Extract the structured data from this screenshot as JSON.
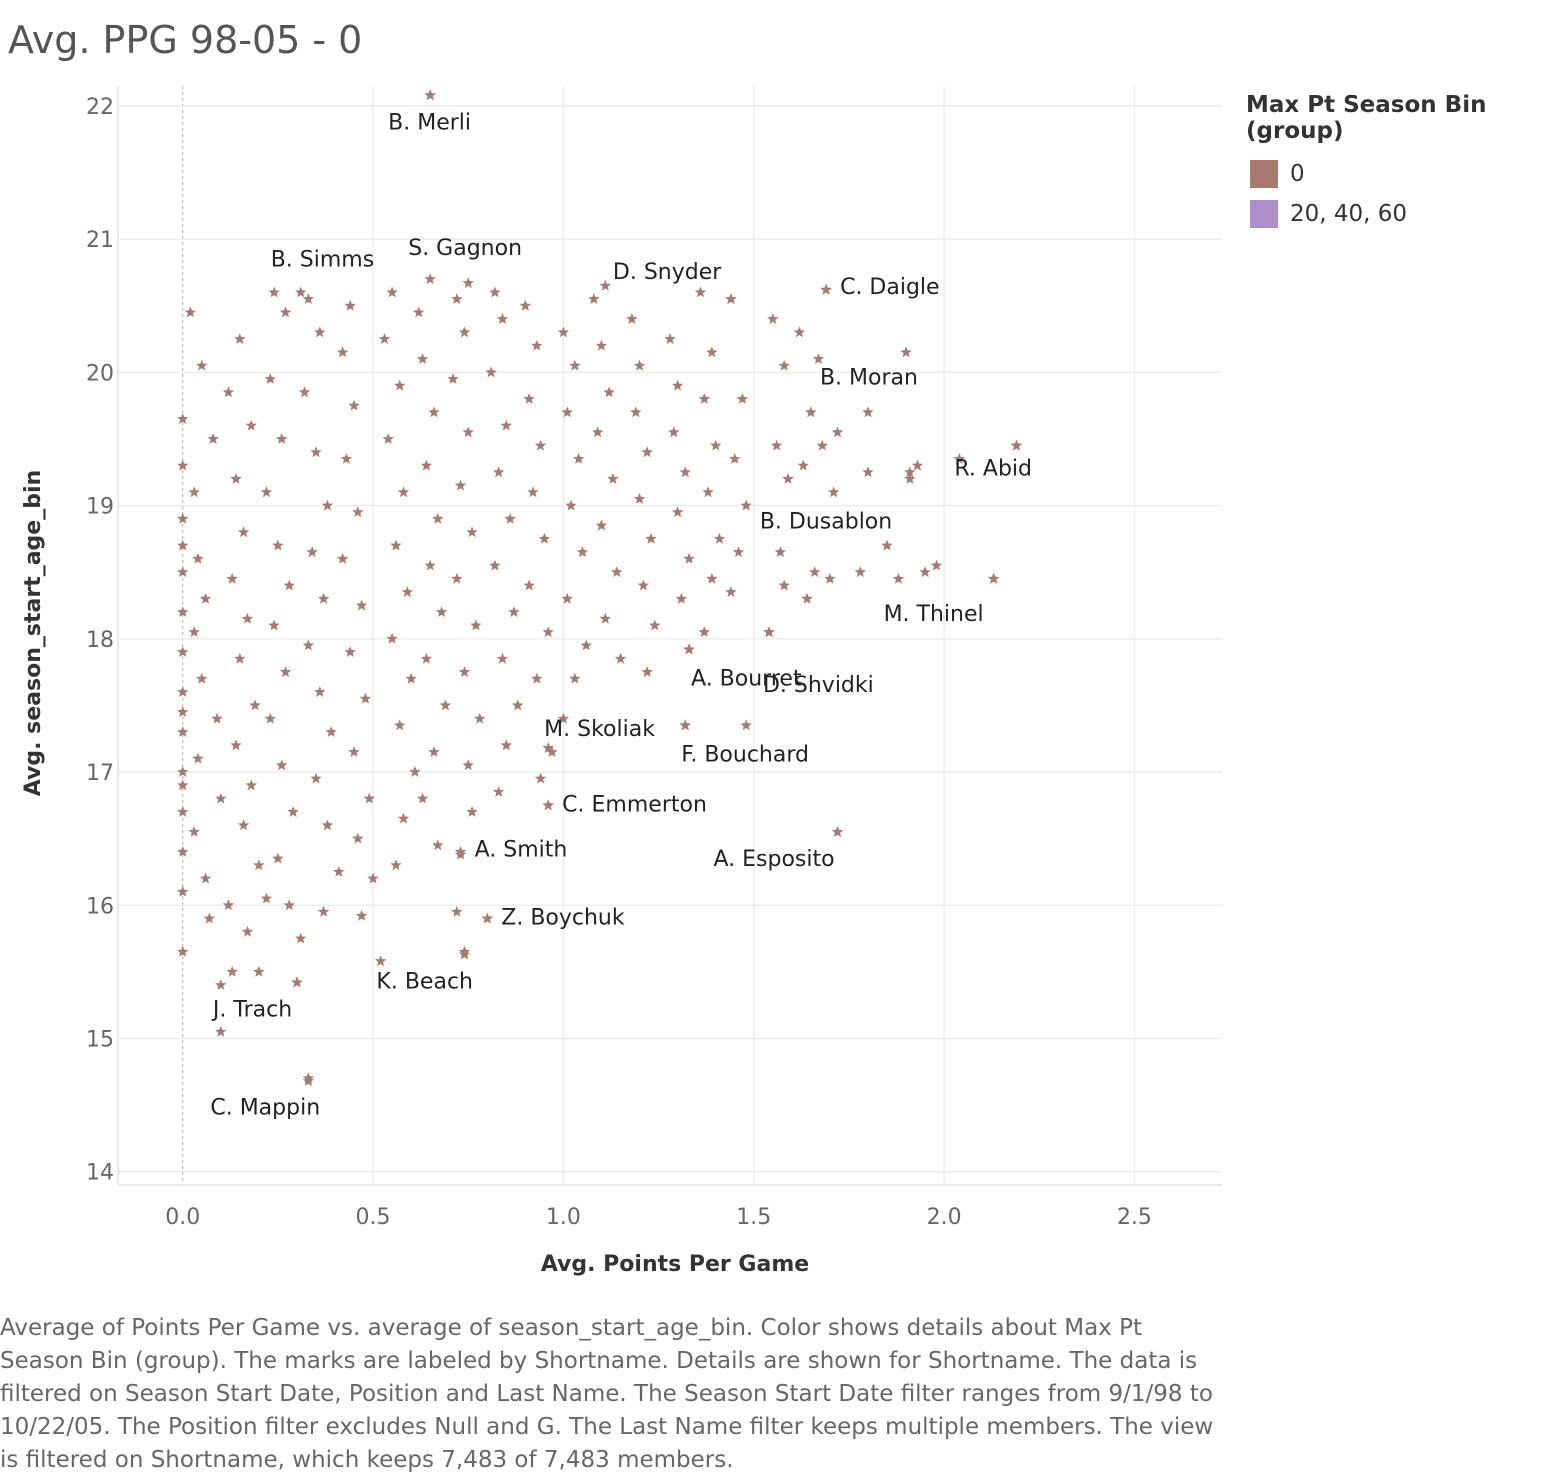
{
  "title": "Avg. PPG 98-05 - 0",
  "legend": {
    "title": "Max Pt Season Bin (group)",
    "items": [
      {
        "label": "0",
        "color": "#a67a6e"
      },
      {
        "label": "20, 40, 60",
        "color": "#ab8fca"
      }
    ]
  },
  "caption": "Average of Points Per Game vs. average of season_start_age_bin.  Color shows details about Max Pt Season Bin (group).  The marks are labeled by Shortname.  Details are shown for Shortname. The data is filtered on Season Start Date, Position and Last Name. The Season Start Date filter ranges from 9/1/98 to 10/22/05. The Position filter excludes Null and G. The Last Name filter keeps multiple members. The view is filtered on Shortname, which keeps 7,483 of 7,483 members.",
  "chart_data": {
    "type": "scatter",
    "xlabel": "Avg. Points Per Game",
    "ylabel": "Avg. season_start_age_bin",
    "xlim": [
      -0.17,
      2.73
    ],
    "ylim": [
      13.9,
      22.15
    ],
    "xticks": [
      "0.0",
      "0.5",
      "1.0",
      "1.5",
      "2.0",
      "2.5"
    ],
    "xtick_values": [
      0,
      0.5,
      1.0,
      1.5,
      2.0,
      2.5
    ],
    "yticks": [
      "14",
      "15",
      "16",
      "17",
      "18",
      "19",
      "20",
      "21",
      "22"
    ],
    "ytick_values": [
      14,
      15,
      16,
      17,
      18,
      19,
      20,
      21,
      22
    ],
    "grid": true,
    "marker": "star",
    "series_color": "#a67a6e",
    "labeled_points": [
      {
        "name": "B. Merli",
        "x": 0.65,
        "y": 22.08
      },
      {
        "name": "B. Simms",
        "x": 0.31,
        "y": 20.6
      },
      {
        "name": "S. Gagnon",
        "x": 0.75,
        "y": 20.67
      },
      {
        "name": "D. Snyder",
        "x": 1.44,
        "y": 20.55
      },
      {
        "name": "C. Daigle",
        "x": 1.69,
        "y": 20.62
      },
      {
        "name": "B. Moran",
        "x": 1.8,
        "y": 19.7
      },
      {
        "name": "R. Abid",
        "x": 2.19,
        "y": 19.45
      },
      {
        "name": "B. Dusablon",
        "x": 1.91,
        "y": 19.25
      },
      {
        "name": "M. Thinel",
        "x": 2.13,
        "y": 18.45
      },
      {
        "name": "D. Shvidki",
        "x": 1.54,
        "y": 18.05
      },
      {
        "name": "A. Bourret",
        "x": 1.33,
        "y": 17.92
      },
      {
        "name": "M. Skoliak",
        "x": 0.96,
        "y": 17.18
      },
      {
        "name": "F. Bouchard",
        "x": 1.32,
        "y": 17.35
      },
      {
        "name": "C. Emmerton",
        "x": 0.96,
        "y": 16.75
      },
      {
        "name": "A. Smith",
        "x": 0.73,
        "y": 16.38
      },
      {
        "name": "A. Esposito",
        "x": 1.72,
        "y": 16.55
      },
      {
        "name": "Z. Boychuk",
        "x": 0.8,
        "y": 15.9
      },
      {
        "name": "K. Beach",
        "x": 0.74,
        "y": 15.63
      },
      {
        "name": "J. Trach",
        "x": 0.3,
        "y": 15.42
      },
      {
        "name": "C. Mappin",
        "x": 0.33,
        "y": 14.7
      }
    ],
    "points": [
      [
        0.0,
        19.65
      ],
      [
        0.0,
        19.3
      ],
      [
        0.0,
        18.9
      ],
      [
        0.0,
        18.5
      ],
      [
        0.0,
        18.2
      ],
      [
        0.0,
        17.9
      ],
      [
        0.0,
        17.6
      ],
      [
        0.0,
        17.3
      ],
      [
        0.0,
        17.0
      ],
      [
        0.0,
        16.7
      ],
      [
        0.0,
        16.4
      ],
      [
        0.0,
        16.1
      ],
      [
        0.0,
        15.65
      ],
      [
        0.0,
        18.7
      ],
      [
        0.0,
        17.45
      ],
      [
        0.0,
        16.9
      ],
      [
        0.02,
        20.45
      ],
      [
        0.05,
        20.05
      ],
      [
        0.03,
        19.1
      ],
      [
        0.04,
        18.6
      ],
      [
        0.03,
        18.05
      ],
      [
        0.05,
        17.7
      ],
      [
        0.04,
        17.1
      ],
      [
        0.03,
        16.55
      ],
      [
        0.06,
        16.2
      ],
      [
        0.07,
        15.9
      ],
      [
        0.08,
        19.5
      ],
      [
        0.06,
        18.3
      ],
      [
        0.09,
        17.4
      ],
      [
        0.1,
        16.8
      ],
      [
        0.12,
        16.0
      ],
      [
        0.1,
        15.4
      ],
      [
        0.13,
        15.5
      ],
      [
        0.1,
        15.05
      ],
      [
        0.12,
        19.85
      ],
      [
        0.15,
        20.25
      ],
      [
        0.18,
        19.6
      ],
      [
        0.14,
        19.2
      ],
      [
        0.16,
        18.8
      ],
      [
        0.13,
        18.45
      ],
      [
        0.17,
        18.15
      ],
      [
        0.15,
        17.85
      ],
      [
        0.19,
        17.5
      ],
      [
        0.14,
        17.2
      ],
      [
        0.18,
        16.9
      ],
      [
        0.16,
        16.6
      ],
      [
        0.2,
        16.3
      ],
      [
        0.22,
        16.05
      ],
      [
        0.17,
        15.8
      ],
      [
        0.2,
        15.5
      ],
      [
        0.24,
        20.6
      ],
      [
        0.27,
        20.45
      ],
      [
        0.23,
        19.95
      ],
      [
        0.26,
        19.5
      ],
      [
        0.22,
        19.1
      ],
      [
        0.25,
        18.7
      ],
      [
        0.28,
        18.4
      ],
      [
        0.24,
        18.1
      ],
      [
        0.27,
        17.75
      ],
      [
        0.23,
        17.4
      ],
      [
        0.26,
        17.05
      ],
      [
        0.29,
        16.7
      ],
      [
        0.25,
        16.35
      ],
      [
        0.28,
        16.0
      ],
      [
        0.31,
        15.75
      ],
      [
        0.3,
        15.42
      ],
      [
        0.33,
        20.55
      ],
      [
        0.36,
        20.3
      ],
      [
        0.32,
        19.85
      ],
      [
        0.35,
        19.4
      ],
      [
        0.38,
        19.0
      ],
      [
        0.34,
        18.65
      ],
      [
        0.37,
        18.3
      ],
      [
        0.33,
        17.95
      ],
      [
        0.36,
        17.6
      ],
      [
        0.39,
        17.3
      ],
      [
        0.35,
        16.95
      ],
      [
        0.38,
        16.6
      ],
      [
        0.41,
        16.25
      ],
      [
        0.37,
        15.95
      ],
      [
        0.33,
        14.68
      ],
      [
        0.44,
        20.5
      ],
      [
        0.42,
        20.15
      ],
      [
        0.45,
        19.75
      ],
      [
        0.43,
        19.35
      ],
      [
        0.46,
        18.95
      ],
      [
        0.42,
        18.6
      ],
      [
        0.47,
        18.25
      ],
      [
        0.44,
        17.9
      ],
      [
        0.48,
        17.55
      ],
      [
        0.45,
        17.15
      ],
      [
        0.49,
        16.8
      ],
      [
        0.46,
        16.5
      ],
      [
        0.5,
        16.2
      ],
      [
        0.52,
        15.58
      ],
      [
        0.47,
        15.92
      ],
      [
        0.55,
        20.6
      ],
      [
        0.53,
        20.25
      ],
      [
        0.57,
        19.9
      ],
      [
        0.54,
        19.5
      ],
      [
        0.58,
        19.1
      ],
      [
        0.56,
        18.7
      ],
      [
        0.59,
        18.35
      ],
      [
        0.55,
        18.0
      ],
      [
        0.6,
        17.7
      ],
      [
        0.57,
        17.35
      ],
      [
        0.61,
        17.0
      ],
      [
        0.58,
        16.65
      ],
      [
        0.56,
        16.3
      ],
      [
        0.62,
        20.45
      ],
      [
        0.65,
        20.7
      ],
      [
        0.63,
        20.1
      ],
      [
        0.66,
        19.7
      ],
      [
        0.64,
        19.3
      ],
      [
        0.67,
        18.9
      ],
      [
        0.65,
        18.55
      ],
      [
        0.68,
        18.2
      ],
      [
        0.64,
        17.85
      ],
      [
        0.69,
        17.5
      ],
      [
        0.66,
        17.15
      ],
      [
        0.63,
        16.8
      ],
      [
        0.67,
        16.45
      ],
      [
        0.65,
        22.08
      ],
      [
        0.72,
        20.55
      ],
      [
        0.74,
        20.3
      ],
      [
        0.71,
        19.95
      ],
      [
        0.75,
        19.55
      ],
      [
        0.73,
        19.15
      ],
      [
        0.76,
        18.8
      ],
      [
        0.72,
        18.45
      ],
      [
        0.77,
        18.1
      ],
      [
        0.74,
        17.75
      ],
      [
        0.78,
        17.4
      ],
      [
        0.75,
        17.05
      ],
      [
        0.73,
        16.4
      ],
      [
        0.72,
        15.95
      ],
      [
        0.74,
        15.65
      ],
      [
        0.76,
        16.7
      ],
      [
        0.82,
        20.6
      ],
      [
        0.84,
        20.4
      ],
      [
        0.81,
        20.0
      ],
      [
        0.85,
        19.6
      ],
      [
        0.83,
        19.25
      ],
      [
        0.86,
        18.9
      ],
      [
        0.82,
        18.55
      ],
      [
        0.87,
        18.2
      ],
      [
        0.84,
        17.85
      ],
      [
        0.88,
        17.5
      ],
      [
        0.85,
        17.2
      ],
      [
        0.83,
        16.85
      ],
      [
        0.8,
        15.9
      ],
      [
        0.9,
        20.5
      ],
      [
        0.93,
        20.2
      ],
      [
        0.91,
        19.8
      ],
      [
        0.94,
        19.45
      ],
      [
        0.92,
        19.1
      ],
      [
        0.95,
        18.75
      ],
      [
        0.91,
        18.4
      ],
      [
        0.96,
        18.05
      ],
      [
        0.93,
        17.7
      ],
      [
        0.97,
        17.15
      ],
      [
        0.94,
        16.95
      ],
      [
        0.96,
        16.75
      ],
      [
        1.0,
        20.3
      ],
      [
        1.03,
        20.05
      ],
      [
        1.01,
        19.7
      ],
      [
        1.04,
        19.35
      ],
      [
        1.02,
        19.0
      ],
      [
        1.05,
        18.65
      ],
      [
        1.01,
        18.3
      ],
      [
        1.06,
        17.95
      ],
      [
        1.03,
        17.7
      ],
      [
        1.0,
        17.4
      ],
      [
        1.08,
        20.55
      ],
      [
        1.11,
        20.65
      ],
      [
        1.1,
        20.2
      ],
      [
        1.12,
        19.85
      ],
      [
        1.09,
        19.55
      ],
      [
        1.13,
        19.2
      ],
      [
        1.1,
        18.85
      ],
      [
        1.14,
        18.5
      ],
      [
        1.11,
        18.15
      ],
      [
        1.15,
        17.85
      ],
      [
        1.18,
        20.4
      ],
      [
        1.2,
        20.05
      ],
      [
        1.19,
        19.7
      ],
      [
        1.22,
        19.4
      ],
      [
        1.2,
        19.05
      ],
      [
        1.23,
        18.75
      ],
      [
        1.21,
        18.4
      ],
      [
        1.24,
        18.1
      ],
      [
        1.22,
        17.75
      ],
      [
        1.28,
        20.25
      ],
      [
        1.3,
        19.9
      ],
      [
        1.29,
        19.55
      ],
      [
        1.32,
        19.25
      ],
      [
        1.3,
        18.95
      ],
      [
        1.33,
        18.6
      ],
      [
        1.31,
        18.3
      ],
      [
        1.33,
        17.92
      ],
      [
        1.32,
        17.35
      ],
      [
        1.36,
        20.6
      ],
      [
        1.39,
        20.15
      ],
      [
        1.37,
        19.8
      ],
      [
        1.4,
        19.45
      ],
      [
        1.38,
        19.1
      ],
      [
        1.41,
        18.75
      ],
      [
        1.39,
        18.45
      ],
      [
        1.37,
        18.05
      ],
      [
        1.44,
        20.55
      ],
      [
        1.47,
        19.8
      ],
      [
        1.45,
        19.35
      ],
      [
        1.48,
        19.0
      ],
      [
        1.46,
        18.65
      ],
      [
        1.44,
        18.35
      ],
      [
        1.48,
        17.35
      ],
      [
        1.55,
        20.4
      ],
      [
        1.58,
        20.05
      ],
      [
        1.56,
        19.45
      ],
      [
        1.59,
        19.2
      ],
      [
        1.57,
        18.65
      ],
      [
        1.54,
        18.05
      ],
      [
        1.58,
        18.4
      ],
      [
        1.62,
        20.3
      ],
      [
        1.65,
        19.7
      ],
      [
        1.63,
        19.3
      ],
      [
        1.66,
        18.5
      ],
      [
        1.64,
        18.3
      ],
      [
        1.69,
        20.62
      ],
      [
        1.67,
        20.1
      ],
      [
        1.68,
        19.45
      ],
      [
        1.72,
        19.55
      ],
      [
        1.71,
        19.1
      ],
      [
        1.7,
        18.45
      ],
      [
        1.72,
        16.55
      ],
      [
        1.8,
        19.25
      ],
      [
        1.78,
        18.5
      ],
      [
        1.85,
        18.7
      ],
      [
        1.88,
        18.45
      ],
      [
        1.9,
        20.15
      ],
      [
        1.93,
        19.3
      ],
      [
        1.91,
        19.2
      ],
      [
        1.95,
        18.5
      ],
      [
        1.98,
        18.55
      ],
      [
        2.04,
        19.35
      ],
      [
        2.13,
        18.45
      ],
      [
        2.19,
        19.45
      ]
    ]
  }
}
